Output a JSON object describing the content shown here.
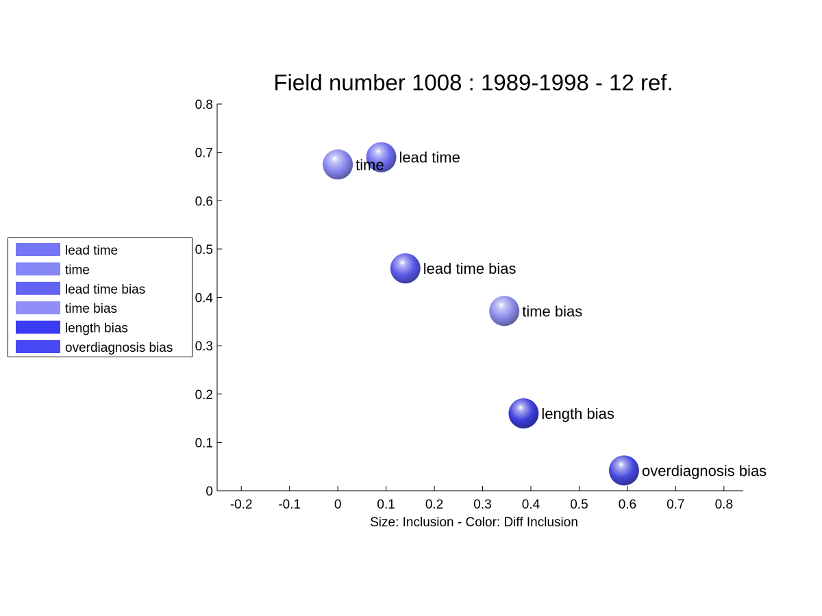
{
  "chart_data": {
    "type": "scatter",
    "title": "Field number 1008 : 1989-1998  - 12 ref.",
    "xlabel": "Size: Inclusion - Color: Diff Inclusion",
    "ylabel": "",
    "xlim": [
      -0.25,
      0.84
    ],
    "ylim": [
      0,
      0.8
    ],
    "xticks": [
      -0.2,
      -0.1,
      0,
      0.1,
      0.2,
      0.3,
      0.4,
      0.5,
      0.6,
      0.7,
      0.8
    ],
    "xtick_labels": [
      "-0.2",
      "-0.1",
      "0",
      "0.1",
      "0.2",
      "0.3",
      "0.4",
      "0.5",
      "0.6",
      "0.7",
      "0.8"
    ],
    "yticks": [
      0,
      0.1,
      0.2,
      0.3,
      0.4,
      0.5,
      0.6,
      0.7,
      0.8
    ],
    "ytick_labels": [
      "0",
      "0.1",
      "0.2",
      "0.3",
      "0.4",
      "0.5",
      "0.6",
      "0.7",
      "0.8"
    ],
    "grid": false,
    "legend_position": "outside-left",
    "points": [
      {
        "label": "lead time",
        "x": 0.09,
        "y": 0.69,
        "color": "#6b6bee"
      },
      {
        "label": "time",
        "x": 0.0,
        "y": 0.675,
        "color": "#8585ee"
      },
      {
        "label": "lead time bias",
        "x": 0.14,
        "y": 0.46,
        "color": "#5757e6"
      },
      {
        "label": "time bias",
        "x": 0.345,
        "y": 0.372,
        "color": "#8a8ae8"
      },
      {
        "label": "length bias",
        "x": 0.385,
        "y": 0.16,
        "color": "#3d3ddc"
      },
      {
        "label": "overdiagnosis bias",
        "x": 0.593,
        "y": 0.042,
        "color": "#4848de"
      }
    ],
    "legend": [
      {
        "label": "lead time",
        "color": "#7575f5"
      },
      {
        "label": "time",
        "color": "#8787f7"
      },
      {
        "label": "lead time bias",
        "color": "#6363f5"
      },
      {
        "label": "time bias",
        "color": "#8f8ff7"
      },
      {
        "label": "length bias",
        "color": "#3b3bf5"
      },
      {
        "label": "overdiagnosis bias",
        "color": "#4848f5"
      }
    ]
  }
}
